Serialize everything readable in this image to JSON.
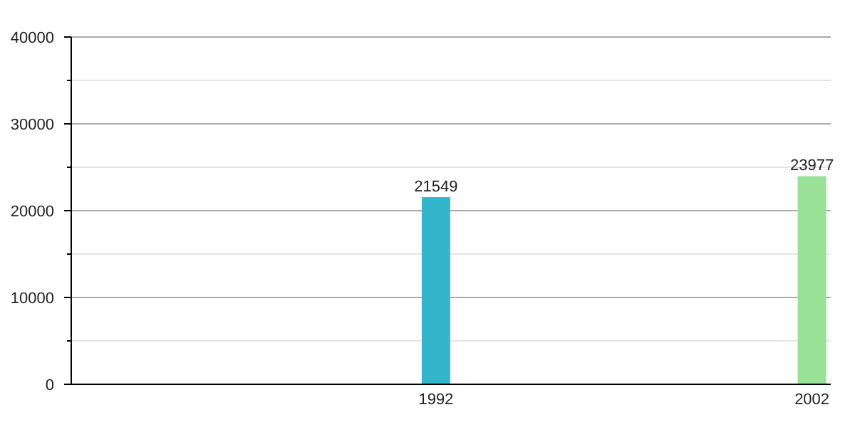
{
  "chart_data": {
    "type": "bar",
    "x": [
      1992,
      2002
    ],
    "values": [
      21549,
      23977
    ],
    "colors": [
      "#33b5cc",
      "#98e196"
    ],
    "xlim": [
      1982.3,
      2002.5
    ],
    "xticks": [
      1992,
      2002
    ],
    "ylim": [
      0,
      40000
    ],
    "yticks": [
      0,
      {
        "value": 5000,
        "label": null
      },
      10000,
      {
        "value": 15000,
        "label": null
      },
      20000,
      {
        "value": 25000,
        "label": null
      },
      30000,
      {
        "value": 35000,
        "label": null
      },
      40000
    ],
    "grid": "y",
    "data_labels": true
  }
}
